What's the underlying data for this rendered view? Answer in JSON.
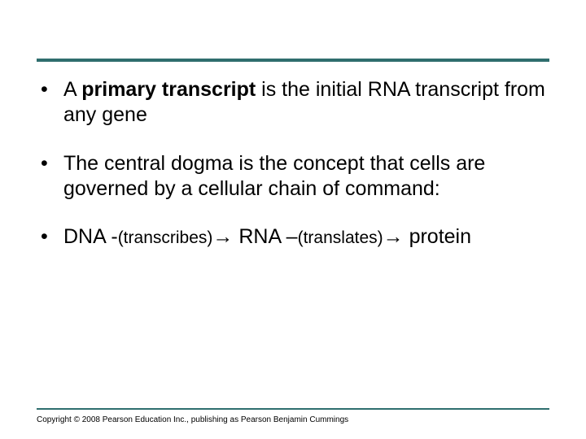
{
  "styling": {
    "rule_color": "#2f6e6e",
    "background_color": "#ffffff",
    "text_color": "#000000",
    "body_fontsize": 25,
    "small_fontsize": 21,
    "copyright_fontsize": 10
  },
  "bullets": [
    {
      "prefix_a": "A ",
      "bold": "primary transcript",
      "suffix": " is the initial RNA transcript from any gene"
    },
    {
      "text": "The central dogma is the concept that cells are governed by a cellular chain of command:"
    },
    {
      "seg1": " DNA -",
      "seg2": "(transcribes)",
      "arrow1": "→",
      "seg3": " RNA –",
      "seg4": "(translates)",
      "arrow2": "→",
      "seg5": " protein"
    }
  ],
  "copyright": "Copyright © 2008 Pearson Education Inc., publishing as Pearson Benjamin Cummings"
}
